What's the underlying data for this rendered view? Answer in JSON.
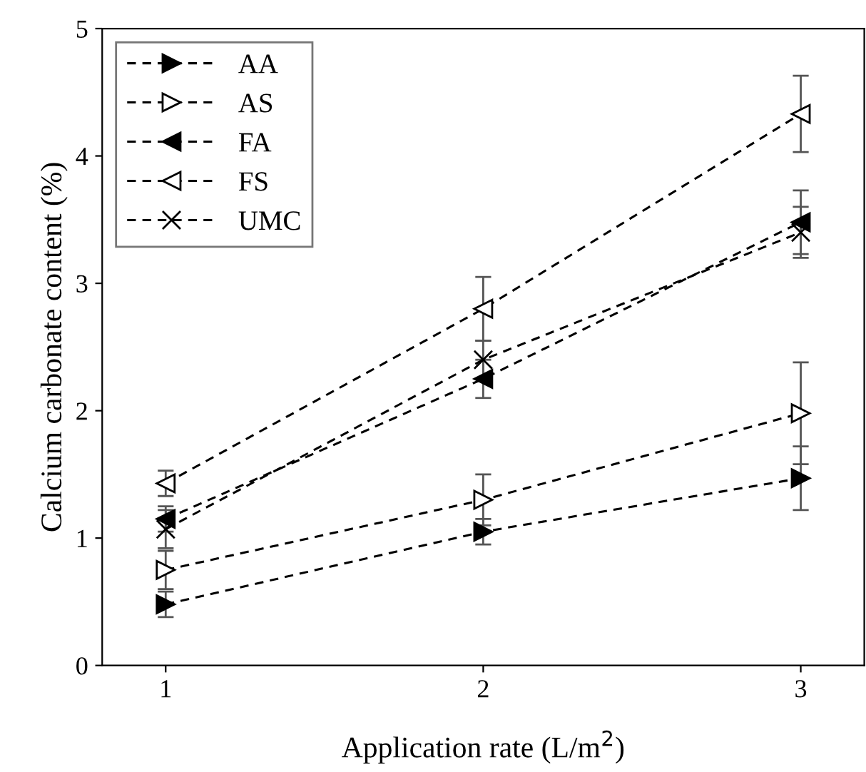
{
  "chart_data": {
    "type": "line",
    "xlabel": "Application rate (L/m$^{2}$)",
    "ylabel": "Calcium carbonate content (%)",
    "x": [
      1,
      2,
      3
    ],
    "xlim": [
      0.8,
      3.2
    ],
    "xticks": [
      1,
      2,
      3
    ],
    "ylim": [
      0,
      5
    ],
    "yticks": [
      0,
      1,
      2,
      3,
      4,
      5
    ],
    "line_style": "dashed",
    "legend": "top left",
    "grid": false,
    "series": [
      {
        "name": "AA",
        "color": "#000000",
        "marker": "triangle_right_filled",
        "values": [
          0.48,
          1.05,
          1.47
        ],
        "errors": [
          0.1,
          0.1,
          0.25
        ]
      },
      {
        "name": "AS",
        "color": "#000000",
        "marker": "triangle_right_open",
        "values": [
          0.75,
          1.3,
          1.98
        ],
        "errors": [
          0.15,
          0.2,
          0.4
        ]
      },
      {
        "name": "FA",
        "color": "#000000",
        "marker": "triangle_left_filled",
        "values": [
          1.15,
          2.25,
          3.48
        ],
        "errors": [
          0.1,
          0.15,
          0.25
        ]
      },
      {
        "name": "FS",
        "color": "#000000",
        "marker": "triangle_left_open",
        "values": [
          1.43,
          2.8,
          4.33
        ],
        "errors": [
          0.1,
          0.25,
          0.3
        ]
      },
      {
        "name": "UMC",
        "color": "#000000",
        "marker": "cross",
        "values": [
          1.07,
          2.4,
          3.4
        ],
        "errors": [
          0.15,
          0.15,
          0.2
        ]
      }
    ]
  }
}
